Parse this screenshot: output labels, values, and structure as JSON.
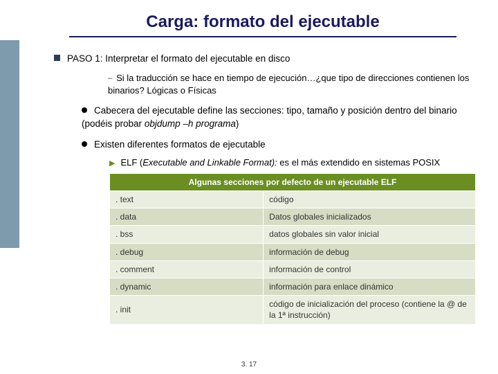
{
  "title": "Carga: formato del ejecutable",
  "step": "PASO 1: Interpretar el formato del ejecutable en disco",
  "sub1": "Si la traducción se hace en tiempo de ejecución…¿que tipo de direcciones contienen los binarios? Lógicas o Físicas",
  "bullet_header_pre": "Cabecera del ejecutable define las secciones: tipo, tamaño y posición dentro del binario (podéis probar ",
  "bullet_header_ital": "objdump –h programa",
  "bullet_header_post": ")",
  "bullet_formats": "Existen diferentes formatos de ejecutable",
  "elf_pre": "ELF (",
  "elf_ital": "Executable and Linkable Format):",
  "elf_post": " es el más extendido en sistemas POSIX",
  "table": {
    "caption": "Algunas secciones por defecto de un ejecutable ELF",
    "rows": [
      {
        "sec": ". text",
        "desc": "código"
      },
      {
        "sec": ". data",
        "desc": "Datos globales inicializados"
      },
      {
        "sec": ". bss",
        "desc": "datos globales sin valor inicial"
      },
      {
        "sec": ". debug",
        "desc": "información de debug"
      },
      {
        "sec": ". comment",
        "desc": "información de control"
      },
      {
        "sec": ". dynamic",
        "desc": "información para enlace dinámico"
      },
      {
        "sec": ". init",
        "desc": "código de inicialización del proceso (contiene la @ de la 1ª instrucción)"
      }
    ]
  },
  "pagenum": "3. 17",
  "colors": {
    "title": "#1a1a5e",
    "sidebar": "#7e9aad",
    "table_header_bg": "#6b8e23",
    "row_a": "#eaeee0",
    "row_b": "#d6ddc4"
  }
}
